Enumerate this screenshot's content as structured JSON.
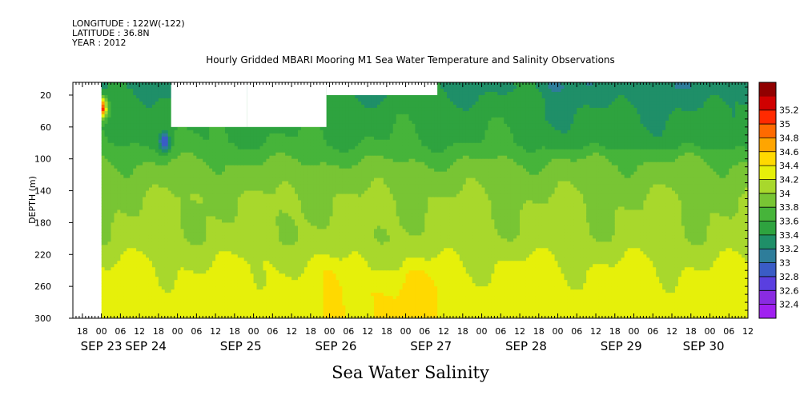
{
  "header": {
    "longitude": "LONGITUDE : 122W(-122)",
    "latitude": "LATITUDE : 36.8N",
    "year": "YEAR : 2012"
  },
  "chart_data": {
    "type": "heatmap",
    "title": "Hourly Gridded MBARI Mooring M1 Sea Water Temperature and Salinity Observations",
    "xlabel": "Sea Water Salinity",
    "ylabel": "DEPTH (m)",
    "y_range": [
      300,
      4
    ],
    "y_ticks": [
      20,
      60,
      100,
      140,
      180,
      220,
      260,
      300
    ],
    "x_range_hours": [
      -9,
      204
    ],
    "hour_ticks": [
      "18",
      "00",
      "06",
      "12",
      "18",
      "00",
      "06",
      "12",
      "18",
      "00",
      "06",
      "12",
      "18",
      "00",
      "06",
      "12",
      "18",
      "00",
      "06",
      "12",
      "18",
      "00",
      "06",
      "12",
      "18",
      "00",
      "06",
      "12",
      "18",
      "00",
      "06",
      "12",
      "18",
      "00",
      "06",
      "12"
    ],
    "date_labels": [
      {
        "text": "SEP 23",
        "hour": 0
      },
      {
        "text": "SEP 24",
        "hour": 14
      },
      {
        "text": "SEP 25",
        "hour": 44
      },
      {
        "text": "SEP 26",
        "hour": 74
      },
      {
        "text": "SEP 27",
        "hour": 104
      },
      {
        "text": "SEP 28",
        "hour": 134
      },
      {
        "text": "SEP 29",
        "hour": 164
      },
      {
        "text": "SEP 30",
        "hour": 190
      }
    ],
    "colorbar": {
      "levels": [
        32.4,
        32.6,
        32.8,
        33,
        33.2,
        33.4,
        33.6,
        33.8,
        34,
        34.2,
        34.4,
        34.6,
        34.8,
        35,
        35.2
      ],
      "colors": [
        "#a020f0",
        "#8a2be2",
        "#5a3fe0",
        "#3a5cc6",
        "#2e7d9a",
        "#1f8f68",
        "#2ea33f",
        "#46b43a",
        "#78c534",
        "#a8d82c",
        "#e6f00a",
        "#ffd900",
        "#ffa500",
        "#ff6a00",
        "#ff2a00",
        "#d00000",
        "#900000"
      ]
    },
    "depth_profile": [
      {
        "depth": 10,
        "salinity": 33.35
      },
      {
        "depth": 40,
        "salinity": 33.5
      },
      {
        "depth": 80,
        "salinity": 33.6
      },
      {
        "depth": 110,
        "salinity": 33.85
      },
      {
        "depth": 150,
        "salinity": 34.0
      },
      {
        "depth": 200,
        "salinity": 34.05
      },
      {
        "depth": 230,
        "salinity": 34.2
      },
      {
        "depth": 270,
        "salinity": 34.3
      }
    ],
    "features": [
      {
        "label": "high salinity patch",
        "hour": 0,
        "depth": 36,
        "salinity": 35.2
      },
      {
        "label": "low salinity patch",
        "hour": 20,
        "depth": 80,
        "salinity": 32.8
      }
    ],
    "missing_data": [
      {
        "hours": [
          -9,
          0
        ],
        "depths": [
          4,
          300
        ]
      },
      {
        "hours": [
          22,
          46
        ],
        "depths": [
          4,
          60
        ]
      },
      {
        "hours": [
          46,
          71
        ],
        "depths": [
          4,
          60
        ]
      },
      {
        "hours": [
          71,
          106
        ],
        "depths": [
          4,
          20
        ]
      }
    ]
  }
}
